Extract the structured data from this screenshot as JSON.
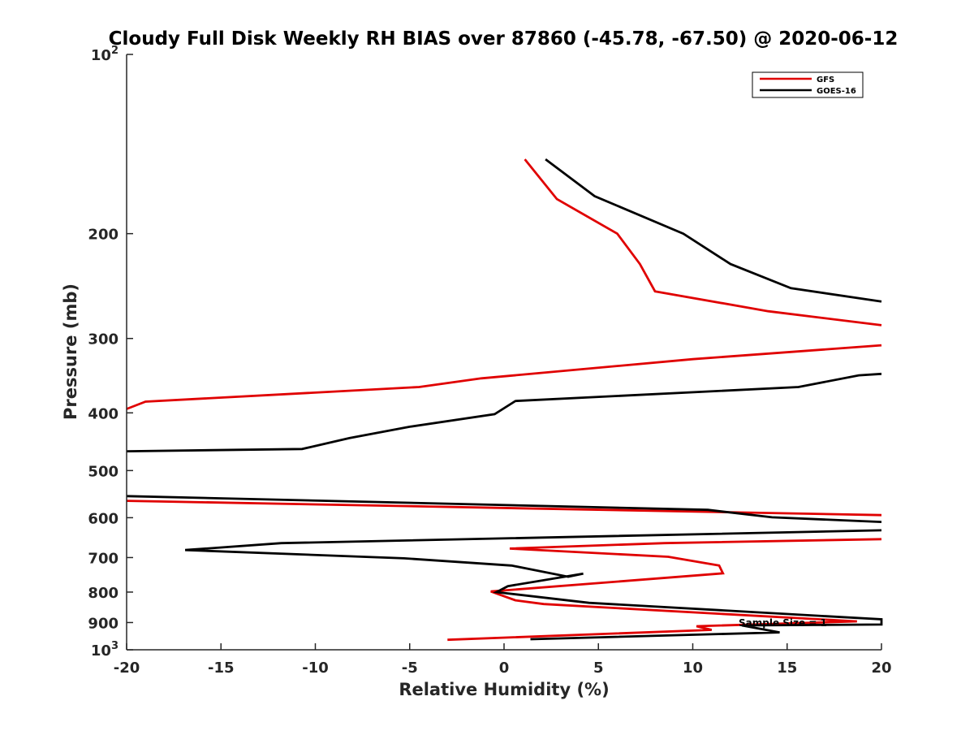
{
  "chart_data": {
    "type": "line",
    "title": "Cloudy Full Disk Weekly RH BIAS over 87860 (-45.78, -67.50) @ 2020-06-12",
    "xlabel": "Relative Humidity (%)",
    "ylabel": "Pressure (mb)",
    "xlim": [
      -20,
      20
    ],
    "ylim": [
      100,
      1000
    ],
    "y_scale": "log",
    "y_reversed": true,
    "grid": false,
    "legend_position": "top-right",
    "x_ticks": [
      "-20",
      "-15",
      "-10",
      "-5",
      "0",
      "5",
      "10",
      "15",
      "20"
    ],
    "y_ticks": [
      {
        "value": 100,
        "base": "10",
        "exp": "2"
      },
      {
        "value": 200,
        "label": "200"
      },
      {
        "value": 300,
        "label": "300"
      },
      {
        "value": 400,
        "label": "400"
      },
      {
        "value": 500,
        "label": "500"
      },
      {
        "value": 600,
        "label": "600"
      },
      {
        "value": 700,
        "label": "700"
      },
      {
        "value": 800,
        "label": "800"
      },
      {
        "value": 900,
        "label": "900"
      },
      {
        "value": 1000,
        "base": "10",
        "exp": "3"
      }
    ],
    "annotation": "Sample Size = 1",
    "series": [
      {
        "name": "GFS",
        "color": "#e00000",
        "points": [
          [
            1.1,
            150
          ],
          [
            2.8,
            175
          ],
          [
            6.0,
            200
          ],
          [
            7.2,
            225
          ],
          [
            8.0,
            250
          ],
          [
            14.0,
            270
          ],
          [
            20.0,
            285
          ],
          null,
          [
            20.0,
            308
          ],
          [
            10.0,
            325
          ],
          [
            -1.2,
            350
          ],
          [
            -4.5,
            362
          ],
          [
            -19.0,
            383
          ],
          [
            -20.0,
            394
          ],
          null,
          [
            -20.0,
            562
          ],
          [
            20.0,
            594
          ],
          null,
          [
            20.0,
            652
          ],
          [
            8.5,
            662
          ],
          [
            0.3,
            676
          ],
          [
            8.7,
            698
          ],
          [
            11.4,
            722
          ],
          [
            11.6,
            744
          ],
          [
            -0.7,
            798
          ],
          [
            0.6,
            826
          ],
          [
            2.1,
            838
          ],
          [
            18.7,
            896
          ],
          [
            10.2,
            913
          ],
          [
            11.0,
            926
          ],
          [
            -3.0,
            962
          ]
        ]
      },
      {
        "name": "GOES-16",
        "color": "#000000",
        "points": [
          [
            2.2,
            150
          ],
          [
            4.8,
            173
          ],
          [
            9.5,
            200
          ],
          [
            12.0,
            225
          ],
          [
            15.2,
            247
          ],
          [
            20.0,
            260
          ],
          null,
          [
            20.0,
            344
          ],
          [
            18.8,
            346
          ],
          [
            15.6,
            362
          ],
          [
            0.6,
            382
          ],
          [
            -0.5,
            402
          ],
          [
            -5.0,
            422
          ],
          [
            -8.2,
            441
          ],
          [
            -10.7,
            460
          ],
          [
            -20.0,
            464
          ],
          null,
          [
            -20.0,
            552
          ],
          [
            10.8,
            582
          ],
          [
            14.2,
            599
          ],
          [
            20.0,
            610
          ],
          null,
          [
            20.0,
            630
          ],
          [
            -11.8,
            662
          ],
          [
            -16.9,
            680
          ],
          [
            -5.3,
            702
          ],
          [
            0.4,
            722
          ],
          [
            3.4,
            754
          ],
          [
            4.2,
            745
          ],
          [
            0.2,
            782
          ],
          [
            -0.4,
            800
          ],
          [
            4.5,
            834
          ],
          [
            20.0,
            889
          ],
          [
            20.0,
            907
          ],
          [
            12.6,
            910
          ],
          [
            14.6,
            935
          ],
          [
            1.4,
            960
          ]
        ]
      }
    ]
  }
}
